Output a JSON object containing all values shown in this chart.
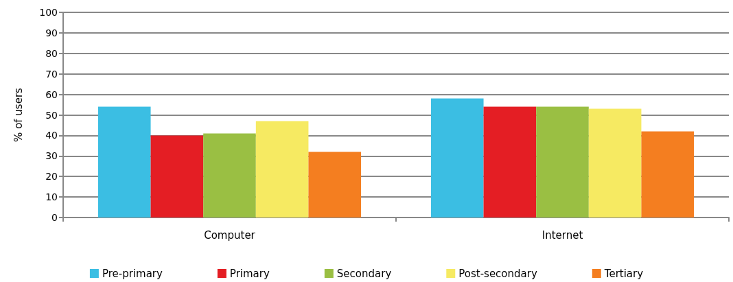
{
  "chart_data": {
    "type": "bar",
    "ylabel": "% of users",
    "categories": [
      "Computer",
      "Internet"
    ],
    "series": [
      {
        "name": "Pre-primary",
        "color": "#3bbee3",
        "values": [
          54,
          58
        ]
      },
      {
        "name": "Primary",
        "color": "#e41e24",
        "values": [
          40,
          54
        ]
      },
      {
        "name": "Secondary",
        "color": "#9abf43",
        "values": [
          41,
          54
        ]
      },
      {
        "name": "Post-secondary",
        "color": "#f6ea62",
        "values": [
          47,
          53
        ]
      },
      {
        "name": "Tertiary",
        "color": "#f47e20",
        "values": [
          32,
          42
        ]
      }
    ],
    "ylim": [
      0,
      100
    ],
    "yticks": [
      0,
      10,
      20,
      30,
      40,
      50,
      60,
      70,
      80,
      90,
      100
    ],
    "grid": "y",
    "legend": "bottom"
  }
}
